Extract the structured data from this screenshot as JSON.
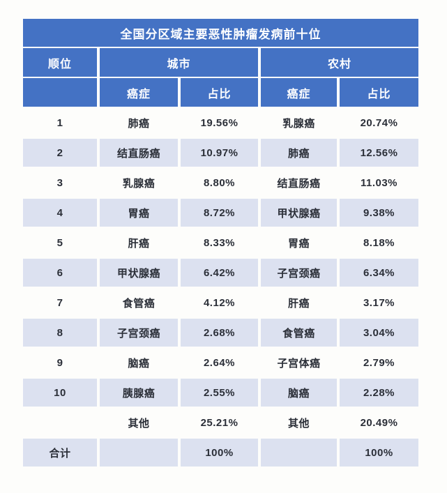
{
  "title": "全国分区域主要恶性肿瘤发病前十位",
  "columns": {
    "rank": "顺位",
    "city_group": "城市",
    "rural_group": "农村",
    "cancer": "癌症",
    "share": "占比"
  },
  "colors": {
    "header_blue": "#4472C4",
    "row_lavender": "#DCE1F0",
    "header_text": "#FFFFFF",
    "body_text": "#2B2F38",
    "background": "#FDFDFB"
  },
  "chart_data": {
    "type": "table",
    "title": "全国分区域主要恶性肿瘤发病前十位",
    "column_groups": [
      "顺位",
      "城市",
      "农村"
    ],
    "sub_columns": [
      "癌症",
      "占比"
    ],
    "rows": [
      {
        "rank": "1",
        "city_cancer": "肺癌",
        "city_share": "19.56%",
        "rural_cancer": "乳腺癌",
        "rural_share": "20.74%"
      },
      {
        "rank": "2",
        "city_cancer": "结直肠癌",
        "city_share": "10.97%",
        "rural_cancer": "肺癌",
        "rural_share": "12.56%"
      },
      {
        "rank": "3",
        "city_cancer": "乳腺癌",
        "city_share": "8.80%",
        "rural_cancer": "结直肠癌",
        "rural_share": "11.03%"
      },
      {
        "rank": "4",
        "city_cancer": "胃癌",
        "city_share": "8.72%",
        "rural_cancer": "甲状腺癌",
        "rural_share": "9.38%"
      },
      {
        "rank": "5",
        "city_cancer": "肝癌",
        "city_share": "8.33%",
        "rural_cancer": "胃癌",
        "rural_share": "8.18%"
      },
      {
        "rank": "6",
        "city_cancer": "甲状腺癌",
        "city_share": "6.42%",
        "rural_cancer": "子宫颈癌",
        "rural_share": "6.34%"
      },
      {
        "rank": "7",
        "city_cancer": "食管癌",
        "city_share": "4.12%",
        "rural_cancer": "肝癌",
        "rural_share": "3.17%"
      },
      {
        "rank": "8",
        "city_cancer": "子宫颈癌",
        "city_share": "2.68%",
        "rural_cancer": "食管癌",
        "rural_share": "3.04%"
      },
      {
        "rank": "9",
        "city_cancer": "脑癌",
        "city_share": "2.64%",
        "rural_cancer": "子宫体癌",
        "rural_share": "2.79%"
      },
      {
        "rank": "10",
        "city_cancer": "胰腺癌",
        "city_share": "2.55%",
        "rural_cancer": "脑癌",
        "rural_share": "2.28%"
      },
      {
        "rank": "",
        "city_cancer": "其他",
        "city_share": "25.21%",
        "rural_cancer": "其他",
        "rural_share": "20.49%"
      },
      {
        "rank": "合计",
        "city_cancer": "",
        "city_share": "100%",
        "rural_cancer": "",
        "rural_share": "100%"
      }
    ]
  }
}
